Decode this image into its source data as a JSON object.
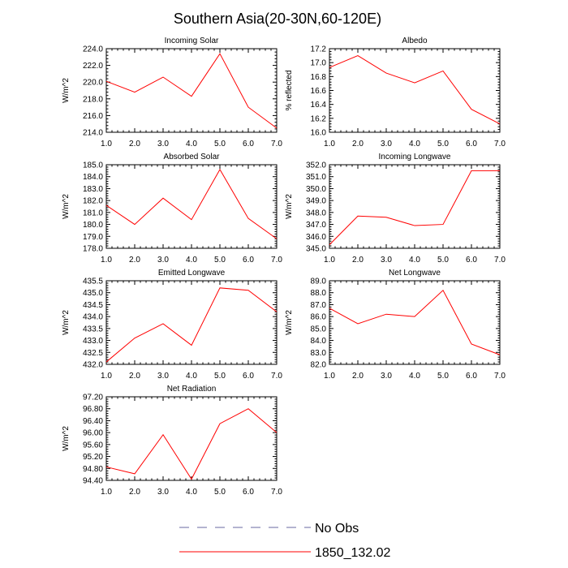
{
  "title": "Southern Asia(20-30N,60-120E)",
  "colors": {
    "series_line": "#ff0000",
    "no_obs_line": "#6a6aa0",
    "axis": "#000000"
  },
  "legend": {
    "items": [
      {
        "label": "No Obs",
        "style": "dashed",
        "color": "#6a6aa0"
      },
      {
        "label": "1850_132.02",
        "style": "solid",
        "color": "#ff0000"
      }
    ]
  },
  "chart_data": [
    {
      "type": "line",
      "title": "Incoming Solar",
      "ylabel": "W/m^2",
      "x": [
        1,
        2,
        3,
        4,
        5,
        6,
        7
      ],
      "xticks": [
        "1.0",
        "2.0",
        "3.0",
        "4.0",
        "5.0",
        "6.0",
        "7.0"
      ],
      "ylim": [
        214.0,
        224.0
      ],
      "yticks": [
        "214.0",
        "216.0",
        "218.0",
        "220.0",
        "222.0",
        "224.0"
      ],
      "series": [
        {
          "name": "1850_132.02",
          "values": [
            220.1,
            218.8,
            220.6,
            218.3,
            223.4,
            217.0,
            214.5
          ]
        }
      ]
    },
    {
      "type": "line",
      "title": "Albedo",
      "ylabel": "% reflected",
      "x": [
        1,
        2,
        3,
        4,
        5,
        6,
        7
      ],
      "xticks": [
        "1.0",
        "2.0",
        "3.0",
        "4.0",
        "5.0",
        "6.0",
        "7.0"
      ],
      "ylim": [
        16.0,
        17.2
      ],
      "yticks": [
        "16.0",
        "16.2",
        "16.4",
        "16.6",
        "16.8",
        "17.0",
        "17.2"
      ],
      "series": [
        {
          "name": "1850_132.02",
          "values": [
            16.93,
            17.1,
            16.85,
            16.71,
            16.88,
            16.33,
            16.12
          ]
        }
      ]
    },
    {
      "type": "line",
      "title": "Absorbed Solar",
      "ylabel": "W/m^2",
      "x": [
        1,
        2,
        3,
        4,
        5,
        6,
        7
      ],
      "xticks": [
        "1.0",
        "2.0",
        "3.0",
        "4.0",
        "5.0",
        "6.0",
        "7.0"
      ],
      "ylim": [
        178.0,
        185.0
      ],
      "yticks": [
        "178.0",
        "179.0",
        "180.0",
        "181.0",
        "182.0",
        "183.0",
        "184.0",
        "185.0"
      ],
      "series": [
        {
          "name": "1850_132.02",
          "values": [
            181.6,
            180.0,
            182.2,
            180.4,
            184.6,
            180.5,
            178.8
          ]
        }
      ]
    },
    {
      "type": "line",
      "title": "Incoming Longwave",
      "ylabel": "W/m^2",
      "x": [
        1,
        2,
        3,
        4,
        5,
        6,
        7
      ],
      "xticks": [
        "1.0",
        "2.0",
        "3.0",
        "4.0",
        "5.0",
        "6.0",
        "7.0"
      ],
      "ylim": [
        345.0,
        352.0
      ],
      "yticks": [
        "345.0",
        "346.0",
        "347.0",
        "348.0",
        "349.0",
        "350.0",
        "351.0",
        "352.0"
      ],
      "series": [
        {
          "name": "1850_132.02",
          "values": [
            345.3,
            347.7,
            347.6,
            346.9,
            347.0,
            351.5,
            351.5
          ]
        }
      ]
    },
    {
      "type": "line",
      "title": "Emitted Longwave",
      "ylabel": "W/m^2",
      "x": [
        1,
        2,
        3,
        4,
        5,
        6,
        7
      ],
      "xticks": [
        "1.0",
        "2.0",
        "3.0",
        "4.0",
        "5.0",
        "6.0",
        "7.0"
      ],
      "ylim": [
        432.0,
        435.5
      ],
      "yticks": [
        "432.0",
        "432.5",
        "433.0",
        "433.5",
        "434.0",
        "434.5",
        "435.0",
        "435.5"
      ],
      "series": [
        {
          "name": "1850_132.02",
          "values": [
            432.1,
            433.1,
            433.7,
            432.8,
            435.2,
            435.1,
            434.2
          ]
        }
      ]
    },
    {
      "type": "line",
      "title": "Net Longwave",
      "ylabel": "W/m^2",
      "x": [
        1,
        2,
        3,
        4,
        5,
        6,
        7
      ],
      "xticks": [
        "1.0",
        "2.0",
        "3.0",
        "4.0",
        "5.0",
        "6.0",
        "7.0"
      ],
      "ylim": [
        82.0,
        89.0
      ],
      "yticks": [
        "82.0",
        "83.0",
        "84.0",
        "85.0",
        "86.0",
        "87.0",
        "88.0",
        "89.0"
      ],
      "series": [
        {
          "name": "1850_132.02",
          "values": [
            86.7,
            85.4,
            86.2,
            86.0,
            88.2,
            83.7,
            82.8
          ]
        }
      ]
    },
    {
      "type": "line",
      "title": "Net Radiation",
      "ylabel": "W/m^2",
      "x": [
        1,
        2,
        3,
        4,
        5,
        6,
        7
      ],
      "xticks": [
        "1.0",
        "2.0",
        "3.0",
        "4.0",
        "5.0",
        "6.0",
        "7.0"
      ],
      "ylim": [
        94.4,
        97.2
      ],
      "yticks": [
        "94.40",
        "94.80",
        "95.20",
        "95.60",
        "96.00",
        "96.40",
        "96.80",
        "97.20"
      ],
      "series": [
        {
          "name": "1850_132.02",
          "values": [
            94.85,
            94.62,
            95.93,
            94.44,
            96.3,
            96.8,
            96.0
          ]
        }
      ]
    }
  ]
}
